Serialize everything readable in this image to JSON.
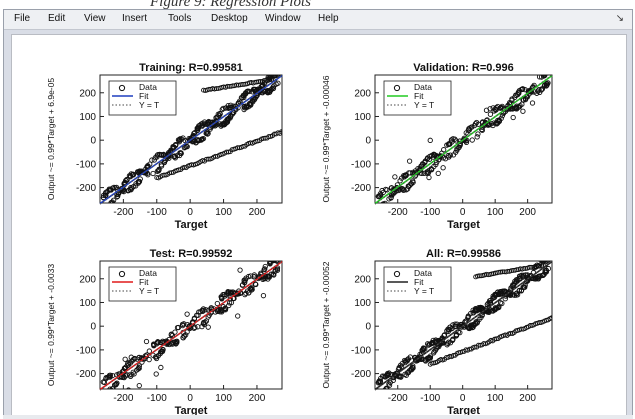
{
  "caption": "Figure 9: Regression Plots",
  "menu": [
    "File",
    "Edit",
    "View",
    "Insert",
    "Tools",
    "Desktop",
    "Window",
    "Help"
  ],
  "menu_arrow": "↘",
  "colors": {
    "training_fit": "#1f3fbf",
    "validation_fit": "#22cc22",
    "test_fit": "#e01a1a",
    "all_fit": "#222222"
  },
  "chart_data": [
    {
      "type": "scatter",
      "title": "Training: R=0.99581",
      "xlabel": "Target",
      "ylabel": "Output ~= 0.99*Target + 6.9e-05",
      "xlim": [
        -270,
        275
      ],
      "ylim": [
        -265,
        275
      ],
      "xticks": [
        "-200",
        "-100",
        "0",
        "100",
        "200"
      ],
      "yticks": [
        "200",
        "100",
        "0",
        "-100",
        "-200"
      ],
      "legend": [
        "Data",
        "Fit",
        "Y = T"
      ],
      "legend_position": "top-left",
      "fit_color": "#1f3fbf",
      "outlier_bands": "both"
    },
    {
      "type": "scatter",
      "title": "Validation: R=0.996",
      "xlabel": "Target",
      "ylabel": "Output ~= 0.99*Target + -0.00046",
      "xlim": [
        -270,
        275
      ],
      "ylim": [
        -265,
        275
      ],
      "xticks": [
        "-200",
        "-100",
        "0",
        "100",
        "200"
      ],
      "yticks": [
        "200",
        "100",
        "0",
        "-100",
        "-200"
      ],
      "legend": [
        "Data",
        "Fit",
        "Y = T"
      ],
      "legend_position": "top-left",
      "fit_color": "#22cc22",
      "outlier_bands": "sparse"
    },
    {
      "type": "scatter",
      "title": "Test: R=0.99592",
      "xlabel": "Target",
      "ylabel": "Output ~= 0.99*Target + -0.0033",
      "xlim": [
        -270,
        275
      ],
      "ylim": [
        -265,
        275
      ],
      "xticks": [
        "-200",
        "-100",
        "0",
        "100",
        "200"
      ],
      "yticks": [
        "200",
        "100",
        "0",
        "-100",
        "-200"
      ],
      "legend": [
        "Data",
        "Fit",
        "Y = T"
      ],
      "legend_position": "top-left",
      "fit_color": "#e01a1a",
      "outlier_bands": "sparse"
    },
    {
      "type": "scatter",
      "title": "All: R=0.99586",
      "xlabel": "Target",
      "ylabel": "Output ~= 0.99*Target + -0.00052",
      "xlim": [
        -270,
        275
      ],
      "ylim": [
        -265,
        275
      ],
      "xticks": [
        "-200",
        "-100",
        "0",
        "100",
        "200"
      ],
      "yticks": [
        "200",
        "100",
        "0",
        "-100",
        "-200"
      ],
      "legend": [
        "Data",
        "Fit",
        "Y = T"
      ],
      "legend_position": "top-left",
      "fit_color": "#222222",
      "outlier_bands": "both"
    }
  ]
}
